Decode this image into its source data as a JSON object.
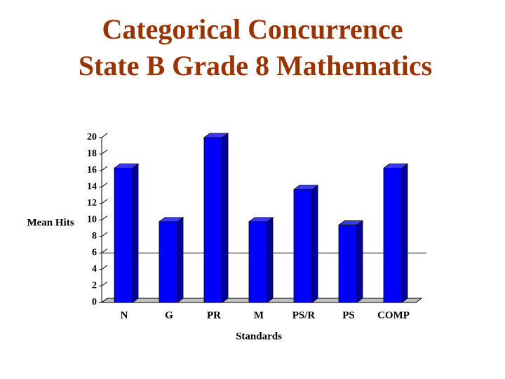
{
  "chart_data": {
    "type": "bar3d",
    "title": "Categorical Concurrence",
    "subtitle": "State B Grade 8 Mathematics",
    "y_label": "Mean Hits",
    "x_label": "Standards",
    "categories": [
      "N",
      "G",
      "PR",
      "M",
      "PS/R",
      "PS",
      "COMP"
    ],
    "values": [
      16.3,
      9.8,
      20,
      9.8,
      13.7,
      9.4,
      16.3
    ],
    "color": "#0000ff",
    "reference_line": 6,
    "ylim": [
      0,
      20
    ],
    "yticks": [
      0,
      2,
      4,
      6,
      8,
      10,
      12,
      14,
      16,
      18,
      20
    ]
  }
}
